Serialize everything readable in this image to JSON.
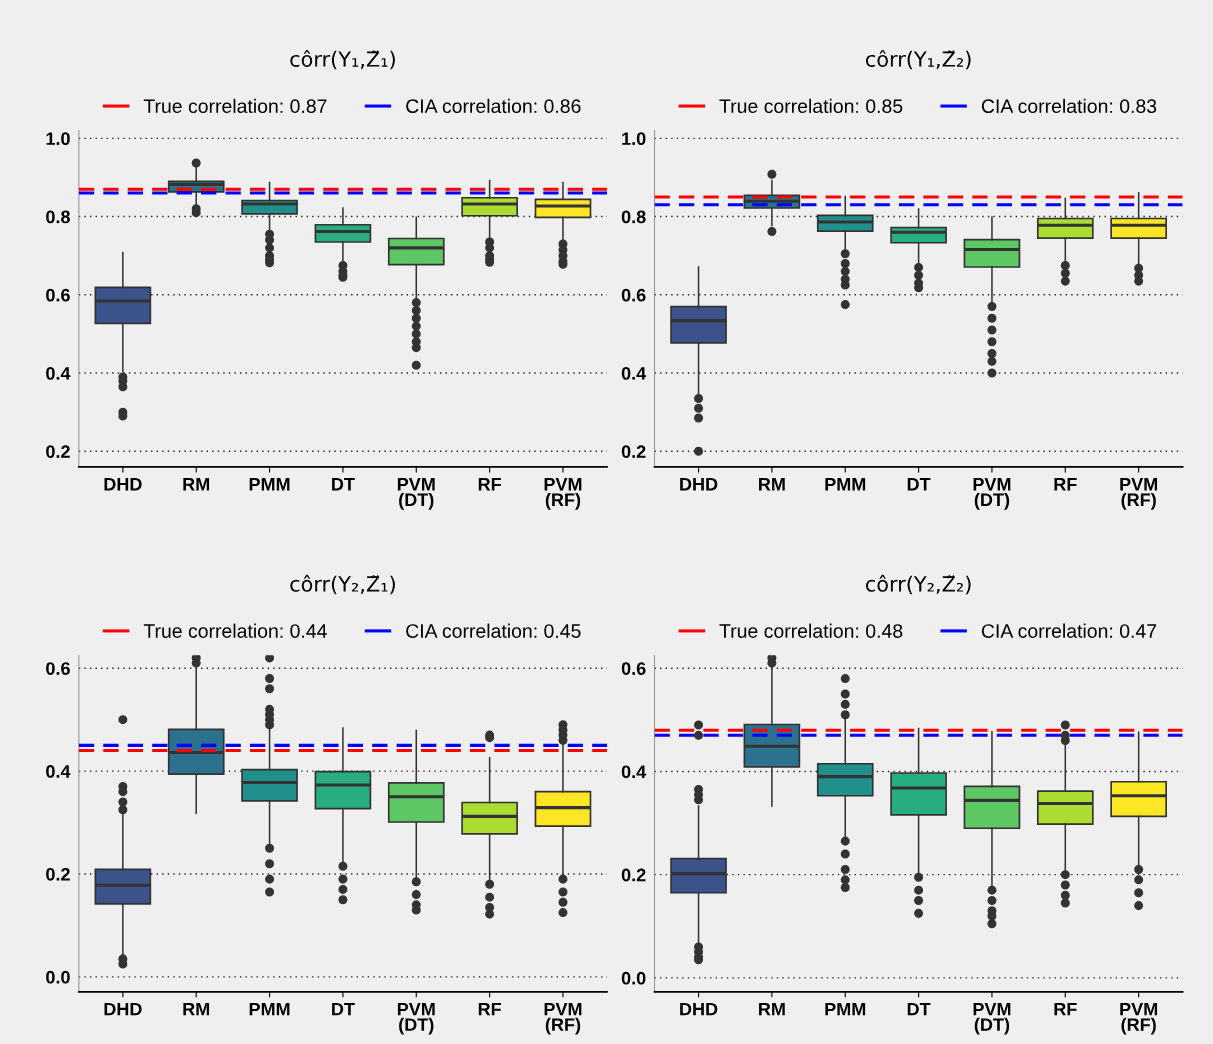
{
  "chart_data": [
    {
      "type": "box",
      "title": "côrr(Y₁,Z̃₁)",
      "categories": [
        "DHD",
        "RM",
        "PMM",
        "DT",
        "PVM\n(DT)",
        "RF",
        "PVM\n(RF)"
      ],
      "colors": [
        "#3b528b",
        "#2c728e",
        "#21908c",
        "#27ad81",
        "#5dc863",
        "#aadc32",
        "#fde725"
      ],
      "ylim": [
        0.16,
        1.02
      ],
      "yticks": [
        {
          "value": 0.2,
          "label": "0.2"
        },
        {
          "value": 0.4,
          "label": "0.4"
        },
        {
          "value": 0.6,
          "label": "0.6"
        },
        {
          "value": 0.8,
          "label": "0.8"
        },
        {
          "value": 1.0,
          "label": "1.0"
        }
      ],
      "grid": "y",
      "legend": "top",
      "ref_lines": [
        {
          "axis": "y",
          "value": 0.87,
          "label": "True correlation: 0.87",
          "color": "#ff0000",
          "line_style": "dashed"
        },
        {
          "axis": "y",
          "value": 0.86,
          "label": "CIA correlation: 0.86",
          "color": "#0000ff",
          "line_style": "dashed"
        }
      ],
      "boxes": [
        {
          "low": 0.404,
          "q1": 0.527,
          "median": 0.584,
          "q3": 0.619,
          "high": 0.708,
          "outliers": [
            0.39,
            0.38,
            0.365,
            0.3,
            0.29
          ]
        },
        {
          "low": 0.824,
          "q1": 0.863,
          "median": 0.882,
          "q3": 0.89,
          "high": 0.925,
          "outliers": [
            0.937,
            0.82,
            0.81
          ]
        },
        {
          "low": 0.761,
          "q1": 0.807,
          "median": 0.832,
          "q3": 0.841,
          "high": 0.887,
          "outliers": [
            0.755,
            0.74,
            0.72,
            0.7,
            0.69,
            0.682
          ]
        },
        {
          "low": 0.679,
          "q1": 0.735,
          "median": 0.762,
          "q3": 0.779,
          "high": 0.822,
          "outliers": [
            0.675,
            0.66,
            0.65,
            0.645
          ]
        },
        {
          "low": 0.587,
          "q1": 0.677,
          "median": 0.72,
          "q3": 0.744,
          "high": 0.798,
          "outliers": [
            0.58,
            0.56,
            0.54,
            0.52,
            0.5,
            0.48,
            0.465,
            0.42
          ]
        },
        {
          "low": 0.739,
          "q1": 0.802,
          "median": 0.832,
          "q3": 0.848,
          "high": 0.892,
          "outliers": [
            0.735,
            0.72,
            0.7,
            0.69,
            0.683
          ]
        },
        {
          "low": 0.737,
          "q1": 0.798,
          "median": 0.827,
          "q3": 0.844,
          "high": 0.887,
          "outliers": [
            0.73,
            0.715,
            0.7,
            0.685,
            0.678
          ]
        }
      ]
    },
    {
      "type": "box",
      "title": "côrr(Y₁,Z̃₂)",
      "categories": [
        "DHD",
        "RM",
        "PMM",
        "DT",
        "PVM\n(DT)",
        "RF",
        "PVM\n(RF)"
      ],
      "colors": [
        "#3b528b",
        "#2c728e",
        "#21908c",
        "#27ad81",
        "#5dc863",
        "#aadc32",
        "#fde725"
      ],
      "ylim": [
        0.16,
        1.02
      ],
      "yticks": [
        {
          "value": 0.2,
          "label": "0.2"
        },
        {
          "value": 0.4,
          "label": "0.4"
        },
        {
          "value": 0.6,
          "label": "0.6"
        },
        {
          "value": 0.8,
          "label": "0.8"
        },
        {
          "value": 1.0,
          "label": "1.0"
        }
      ],
      "grid": "y",
      "legend": "top",
      "ref_lines": [
        {
          "axis": "y",
          "value": 0.85,
          "label": "True correlation: 0.85",
          "color": "#ff0000",
          "line_style": "dashed"
        },
        {
          "axis": "y",
          "value": 0.83,
          "label": "CIA correlation: 0.83",
          "color": "#0000ff",
          "line_style": "dashed"
        }
      ],
      "boxes": [
        {
          "low": 0.347,
          "q1": 0.477,
          "median": 0.534,
          "q3": 0.57,
          "high": 0.671,
          "outliers": [
            0.335,
            0.31,
            0.285,
            0.2
          ]
        },
        {
          "low": 0.777,
          "q1": 0.822,
          "median": 0.839,
          "q3": 0.854,
          "high": 0.892,
          "outliers": [
            0.908,
            0.762
          ]
        },
        {
          "low": 0.713,
          "q1": 0.763,
          "median": 0.786,
          "q3": 0.803,
          "high": 0.851,
          "outliers": [
            0.705,
            0.68,
            0.66,
            0.64,
            0.625,
            0.575
          ]
        },
        {
          "low": 0.676,
          "q1": 0.733,
          "median": 0.76,
          "q3": 0.772,
          "high": 0.819,
          "outliers": [
            0.67,
            0.65,
            0.63,
            0.618
          ]
        },
        {
          "low": 0.576,
          "q1": 0.671,
          "median": 0.716,
          "q3": 0.741,
          "high": 0.799,
          "outliers": [
            0.57,
            0.54,
            0.51,
            0.48,
            0.45,
            0.43,
            0.4
          ]
        },
        {
          "low": 0.682,
          "q1": 0.745,
          "median": 0.778,
          "q3": 0.795,
          "high": 0.846,
          "outliers": [
            0.675,
            0.655,
            0.635
          ]
        },
        {
          "low": 0.674,
          "q1": 0.745,
          "median": 0.778,
          "q3": 0.795,
          "high": 0.861,
          "outliers": [
            0.668,
            0.65,
            0.635
          ]
        }
      ]
    },
    {
      "type": "box",
      "title": "côrr(Y₂,Z̃₁)",
      "categories": [
        "DHD",
        "RM",
        "PMM",
        "DT",
        "PVM\n(DT)",
        "RF",
        "PVM\n(RF)"
      ],
      "colors": [
        "#3b528b",
        "#2c728e",
        "#21908c",
        "#27ad81",
        "#5dc863",
        "#aadc32",
        "#fde725"
      ],
      "ylim": [
        -0.029,
        0.625
      ],
      "yticks": [
        {
          "value": 0.0,
          "label": "0.0"
        },
        {
          "value": 0.2,
          "label": "0.2"
        },
        {
          "value": 0.4,
          "label": "0.4"
        },
        {
          "value": 0.6,
          "label": "0.6"
        }
      ],
      "grid": "y",
      "legend": "top",
      "ref_lines": [
        {
          "axis": "y",
          "value": 0.44,
          "label": "True correlation: 0.44",
          "color": "#ff0000",
          "line_style": "dashed"
        },
        {
          "axis": "y",
          "value": 0.45,
          "label": "CIA correlation: 0.45",
          "color": "#0000ff",
          "line_style": "dashed"
        }
      ],
      "boxes": [
        {
          "low": 0.04,
          "q1": 0.142,
          "median": 0.178,
          "q3": 0.209,
          "high": 0.318,
          "outliers": [
            0.325,
            0.34,
            0.36,
            0.37,
            0.5,
            0.035,
            0.025
          ]
        },
        {
          "low": 0.318,
          "q1": 0.394,
          "median": 0.436,
          "q3": 0.481,
          "high": 0.606,
          "outliers": [
            0.61,
            0.62
          ]
        },
        {
          "low": 0.256,
          "q1": 0.342,
          "median": 0.378,
          "q3": 0.403,
          "high": 0.484,
          "outliers": [
            0.49,
            0.5,
            0.51,
            0.52,
            0.56,
            0.58,
            0.62,
            0.25,
            0.22,
            0.19,
            0.165
          ]
        },
        {
          "low": 0.22,
          "q1": 0.327,
          "median": 0.373,
          "q3": 0.399,
          "high": 0.484,
          "outliers": [
            0.215,
            0.19,
            0.17,
            0.15
          ]
        },
        {
          "low": 0.191,
          "q1": 0.301,
          "median": 0.35,
          "q3": 0.377,
          "high": 0.479,
          "outliers": [
            0.185,
            0.16,
            0.14,
            0.13
          ]
        },
        {
          "low": 0.188,
          "q1": 0.278,
          "median": 0.312,
          "q3": 0.339,
          "high": 0.426,
          "outliers": [
            0.47,
            0.465,
            0.18,
            0.155,
            0.135,
            0.122
          ]
        },
        {
          "low": 0.196,
          "q1": 0.293,
          "median": 0.329,
          "q3": 0.36,
          "high": 0.458,
          "outliers": [
            0.46,
            0.47,
            0.48,
            0.49,
            0.19,
            0.165,
            0.145,
            0.125
          ]
        }
      ]
    },
    {
      "type": "box",
      "title": "côrr(Y₂,Z̃₂)",
      "categories": [
        "DHD",
        "RM",
        "PMM",
        "DT",
        "PVM\n(DT)",
        "RF",
        "PVM\n(RF)"
      ],
      "colors": [
        "#3b528b",
        "#2c728e",
        "#21908c",
        "#27ad81",
        "#5dc863",
        "#aadc32",
        "#fde725"
      ],
      "ylim": [
        -0.027,
        0.625
      ],
      "yticks": [
        {
          "value": 0.0,
          "label": "0.0"
        },
        {
          "value": 0.2,
          "label": "0.2"
        },
        {
          "value": 0.4,
          "label": "0.4"
        },
        {
          "value": 0.6,
          "label": "0.6"
        }
      ],
      "grid": "y",
      "legend": "top",
      "ref_lines": [
        {
          "axis": "y",
          "value": 0.48,
          "label": "True correlation: 0.48",
          "color": "#ff0000",
          "line_style": "dashed"
        },
        {
          "axis": "y",
          "value": 0.47,
          "label": "CIA correlation: 0.47",
          "color": "#0000ff",
          "line_style": "dashed"
        }
      ],
      "boxes": [
        {
          "low": 0.066,
          "q1": 0.165,
          "median": 0.202,
          "q3": 0.231,
          "high": 0.333,
          "outliers": [
            0.345,
            0.355,
            0.365,
            0.47,
            0.49,
            0.06,
            0.05,
            0.04,
            0.035
          ]
        },
        {
          "low": 0.333,
          "q1": 0.409,
          "median": 0.449,
          "q3": 0.491,
          "high": 0.606,
          "outliers": [
            0.61,
            0.62
          ]
        },
        {
          "low": 0.272,
          "q1": 0.353,
          "median": 0.39,
          "q3": 0.415,
          "high": 0.503,
          "outliers": [
            0.51,
            0.53,
            0.55,
            0.58,
            0.265,
            0.24,
            0.21,
            0.19,
            0.175
          ]
        },
        {
          "low": 0.201,
          "q1": 0.316,
          "median": 0.368,
          "q3": 0.397,
          "high": 0.483,
          "outliers": [
            0.195,
            0.17,
            0.15,
            0.125
          ]
        },
        {
          "low": 0.176,
          "q1": 0.29,
          "median": 0.344,
          "q3": 0.371,
          "high": 0.477,
          "outliers": [
            0.17,
            0.15,
            0.13,
            0.12,
            0.105
          ]
        },
        {
          "low": 0.207,
          "q1": 0.298,
          "median": 0.338,
          "q3": 0.362,
          "high": 0.452,
          "outliers": [
            0.46,
            0.47,
            0.49,
            0.2,
            0.18,
            0.16,
            0.145
          ]
        },
        {
          "low": 0.217,
          "q1": 0.313,
          "median": 0.353,
          "q3": 0.38,
          "high": 0.476,
          "outliers": [
            0.21,
            0.19,
            0.165,
            0.14
          ]
        }
      ]
    }
  ]
}
